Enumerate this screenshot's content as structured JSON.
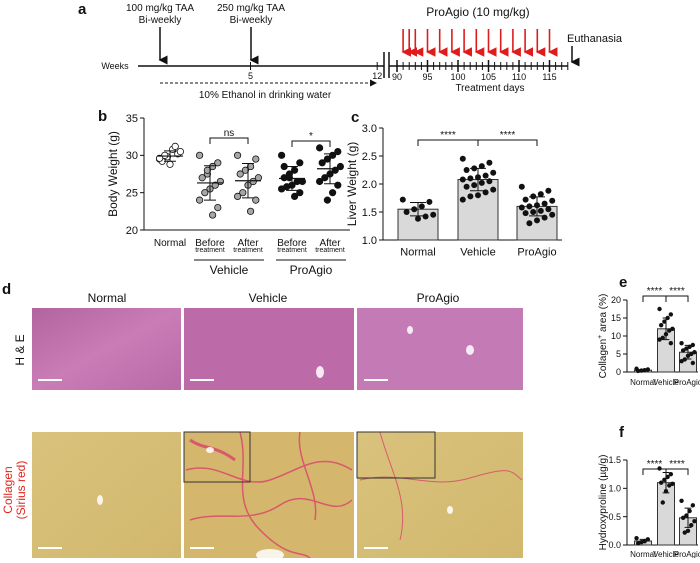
{
  "panel_labels": {
    "a": "a",
    "b": "b",
    "c": "c",
    "d": "d",
    "e": "e",
    "f": "f"
  },
  "timeline": {
    "weeks_label": "Weeks",
    "week_ticks": [
      5,
      12
    ],
    "dose1": [
      "100 mg/kg TAA",
      "Bi-weekly"
    ],
    "dose2": [
      "250 mg/kg TAA",
      "Bi-weekly"
    ],
    "ethanol": "10% Ethanol in drinking water",
    "treatment_title": "ProAgio (10 mg/kg)",
    "day_ticks": [
      90,
      95,
      100,
      105,
      110,
      115
    ],
    "xlim": [
      90,
      115
    ],
    "dosing_days": [
      91,
      92,
      93,
      95,
      97,
      99,
      101,
      103,
      105,
      107,
      109,
      111,
      113,
      115
    ],
    "euthanasia": "Euthanasia",
    "days_label": "Treatment days"
  },
  "histology": {
    "columns": [
      "Normal",
      "Vehicle",
      "ProAgio"
    ],
    "rows": [
      "H & E"
    ],
    "row2": [
      "Collagen",
      "(Sirius red)"
    ]
  },
  "chart_data": [
    {
      "type": "scatter",
      "y_label": "Body Weight (g)",
      "categories": [
        "Normal",
        "Before",
        "After",
        "Before",
        "After"
      ],
      "category_sublabels": [
        null,
        "treatment",
        "treatment",
        "treatment",
        "treatment"
      ],
      "group_labels": [
        "Vehicle",
        "ProAgio"
      ],
      "point_colors": [
        "#ffffff",
        "#a6a6a6",
        "#a6a6a6",
        "#111111",
        "#111111"
      ],
      "points": [
        [
          29.5,
          30.2,
          30.8,
          29.8,
          29.2,
          30.5,
          31.2,
          28.8,
          30.0,
          29.6
        ],
        [
          30,
          29,
          28.5,
          27.5,
          27,
          26.5,
          26,
          25.5,
          25,
          24,
          23,
          22,
          28
        ],
        [
          30,
          29.5,
          28.5,
          28,
          27.5,
          27,
          26.5,
          26,
          25,
          24.5,
          24,
          22.5
        ],
        [
          30,
          29,
          28,
          27.5,
          27,
          26.5,
          26.5,
          26,
          25.8,
          25.5,
          25,
          24.5,
          27,
          28.5
        ],
        [
          31,
          30.5,
          30,
          29.5,
          29,
          28.5,
          28,
          27.5,
          27,
          26.5,
          26,
          25,
          24
        ]
      ],
      "means": [
        29.9,
        26.3,
        26.6,
        26.9,
        28.2
      ],
      "errors": [
        0.7,
        2.3,
        2.3,
        1.6,
        2.0
      ],
      "annotations": [
        "ns",
        "*"
      ],
      "ylim": [
        20,
        35
      ],
      "yticks": [
        20,
        25,
        30,
        35
      ]
    },
    {
      "type": "bar",
      "y_label": "Liver Weight (g)",
      "categories": [
        "Normal",
        "Vehicle",
        "ProAgio"
      ],
      "color": "#d9d9d9",
      "point_color": "#111111",
      "points": [
        [
          1.72,
          1.68,
          1.6,
          1.55,
          1.5,
          1.45,
          1.42,
          1.38
        ],
        [
          2.45,
          2.38,
          2.32,
          2.28,
          2.25,
          2.2,
          2.15,
          2.12,
          2.1,
          2.08,
          2.05,
          2.02,
          1.98,
          1.95,
          1.9,
          1.85,
          1.8,
          1.78,
          1.72
        ],
        [
          1.95,
          1.88,
          1.82,
          1.78,
          1.72,
          1.7,
          1.65,
          1.62,
          1.6,
          1.58,
          1.55,
          1.52,
          1.5,
          1.48,
          1.45,
          1.4,
          1.35,
          1.3
        ]
      ],
      "values": [
        1.55,
        2.08,
        1.6
      ],
      "errors": [
        0.12,
        0.2,
        0.17
      ],
      "annotations": [
        "****",
        "****"
      ],
      "ylim": [
        1.0,
        3.0
      ],
      "yticks": [
        {
          "value": 1.0,
          "label": "1.0"
        },
        {
          "value": 1.5,
          "label": "1.5"
        },
        {
          "value": 2.0,
          "label": "2.0"
        },
        {
          "value": 2.5,
          "label": "2.5"
        },
        {
          "value": 3.0,
          "label": "3.0"
        }
      ]
    },
    {
      "type": "bar",
      "y_label": "Collagen",
      "y_label_sup": "+",
      "y_label_rest": " area (%)",
      "categories": [
        "Normal",
        "Vehicle",
        "ProAgio"
      ],
      "color": "#d9d9d9",
      "point_color": "#111111",
      "points": [
        [
          0.9,
          0.7,
          0.5,
          0.4,
          0.3
        ],
        [
          17.5,
          16,
          15,
          14,
          13,
          12,
          11.5,
          10.5,
          9.5,
          9,
          8
        ],
        [
          8,
          7.5,
          7,
          6.5,
          6,
          5.5,
          5,
          4.5,
          3.5,
          3,
          2.5
        ]
      ],
      "values": [
        0.5,
        12,
        5.5
      ],
      "errors": [
        0.2,
        3,
        1.9
      ],
      "annotations": [
        "****",
        "****"
      ],
      "ylim": [
        0,
        20
      ],
      "yticks": [
        0,
        5,
        10,
        15,
        20
      ]
    },
    {
      "type": "bar",
      "y_label": "Hydroxyproline (µg/g)",
      "categories": [
        "Normal",
        "Vehicle",
        "ProAgio"
      ],
      "color": "#d9d9d9",
      "point_color": "#111111",
      "points": [
        [
          0.12,
          0.1,
          0.07,
          0.05,
          0.03
        ],
        [
          1.35,
          1.25,
          1.2,
          1.15,
          1.1,
          1.08,
          1.05,
          0.95,
          0.75
        ],
        [
          0.78,
          0.7,
          0.6,
          0.52,
          0.48,
          0.42,
          0.35,
          0.25,
          0.22
        ]
      ],
      "values": [
        0.07,
        1.1,
        0.48
      ],
      "errors": [
        0.03,
        0.18,
        0.17
      ],
      "annotations": [
        "****",
        "****"
      ],
      "ylim": [
        0,
        1.5
      ],
      "yticks": [
        {
          "value": 0,
          "label": "0.0"
        },
        {
          "value": 0.5,
          "label": "0.5"
        },
        {
          "value": 1.0,
          "label": "1.0"
        },
        {
          "value": 1.5,
          "label": "1.5"
        }
      ]
    }
  ]
}
